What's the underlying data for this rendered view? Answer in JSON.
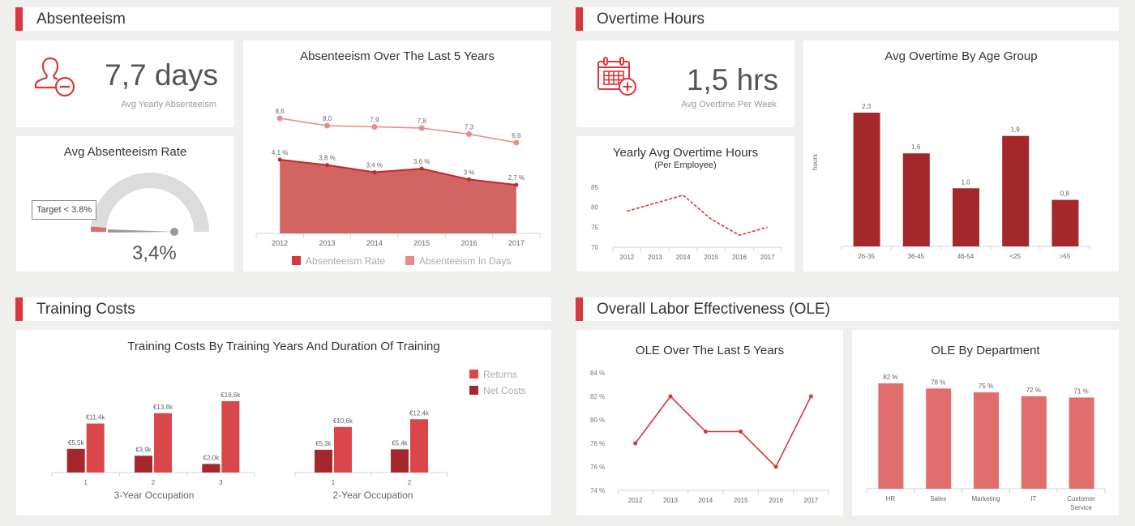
{
  "colors": {
    "accent": "#d6383d",
    "dark_red": "#a4282b",
    "area_red": "#d26462",
    "light_red": "#ea8a8a",
    "bar_red": "#d9474a",
    "ole_bar": "#df6e6d",
    "gauge_track": "#dcdcdc",
    "axis": "#c8d4e6"
  },
  "sections": {
    "absenteeism": {
      "title": "Absenteeism"
    },
    "overtime": {
      "title": "Overtime Hours"
    },
    "training": {
      "title": "Training Costs"
    },
    "ole": {
      "title": "Overall Labor Effectiveness (OLE)"
    }
  },
  "kpis": {
    "absenteeism": {
      "icon": "user-minus-icon",
      "value": "7,7 days",
      "label": "Avg Yearly Absenteeism"
    },
    "overtime": {
      "icon": "calendar-plus-icon",
      "value": "1,5 hrs",
      "label": "Avg Overtime Per Week"
    }
  },
  "gauge": {
    "title": "Avg Absenteeism Rate",
    "target_label": "Target < 3.8%",
    "value_label": "3,4%",
    "value": 3.4,
    "target": 3.8
  },
  "chart_data": [
    {
      "id": "absenteeism_5y",
      "type": "area",
      "title": "Absenteeism Over The Last 5 Years",
      "categories": [
        "2012",
        "2013",
        "2014",
        "2015",
        "2016",
        "2017"
      ],
      "series": [
        {
          "name": "Absenteeism Rate",
          "values": [
            4.1,
            3.8,
            3.4,
            3.6,
            3.0,
            2.7
          ],
          "labels": [
            "4,1 %",
            "3,8 %",
            "3,4 %",
            "3,6 %",
            "3 %",
            "2,7 %"
          ],
          "kind": "area"
        },
        {
          "name": "Absenteeism In Days",
          "values": [
            8.6,
            8.0,
            7.9,
            7.8,
            7.3,
            6.6
          ],
          "labels": [
            "8,6",
            "8,0",
            "7,9",
            "7,8",
            "7,3",
            "6,6"
          ],
          "kind": "line"
        }
      ],
      "legend": "bottom"
    },
    {
      "id": "yearly_overtime",
      "type": "line",
      "title": "Yearly Avg Overtime Hours",
      "subtitle": "(Per Employee)",
      "categories": [
        "2012",
        "2013",
        "2014",
        "2015",
        "2016",
        "2017"
      ],
      "values": [
        79,
        81,
        83,
        77,
        73,
        75
      ],
      "yticks": [
        "85",
        "80",
        "75",
        "70"
      ],
      "ylim": [
        70,
        85
      ],
      "style": "dashed"
    },
    {
      "id": "overtime_age",
      "type": "bar",
      "title": "Avg Overtime By Age Group",
      "ylabel": "hours",
      "categories": [
        "26-35",
        "36-45",
        "46-54",
        "<25",
        ">55"
      ],
      "values": [
        2.3,
        1.6,
        1.0,
        1.9,
        0.8
      ],
      "labels": [
        "2,3",
        "1,6",
        "1,0",
        "1,9",
        "0,8"
      ],
      "ylim": [
        0,
        2.3
      ]
    },
    {
      "id": "training_costs",
      "type": "bar",
      "title": "Training Costs By Training Years And Duration Of Training",
      "legend_entries": [
        "Returns",
        "Net Costs"
      ],
      "legend": "top-right",
      "groups": [
        {
          "name": "3-Year Occupation",
          "categories": [
            "1",
            "2",
            "3"
          ],
          "series": [
            {
              "name": "Net Costs",
              "values": [
                5.5,
                3.9,
                2.0
              ],
              "labels": [
                "€5,5k",
                "€3,9k",
                "€2,0k"
              ]
            },
            {
              "name": "Returns",
              "values": [
                11.4,
                13.8,
                16.6
              ],
              "labels": [
                "€11,4k",
                "€13,8k",
                "€16,6k"
              ]
            }
          ]
        },
        {
          "name": "2-Year Occupation",
          "categories": [
            "1",
            "2"
          ],
          "series": [
            {
              "name": "Net Costs",
              "values": [
                5.3,
                5.4
              ],
              "labels": [
                "€5,3k",
                "€5,4k"
              ]
            },
            {
              "name": "Returns",
              "values": [
                10.6,
                12.4
              ],
              "labels": [
                "€10,6k",
                "€12,4k"
              ]
            }
          ]
        }
      ]
    },
    {
      "id": "ole_5y",
      "type": "line",
      "title": "OLE Over The Last 5 Years",
      "categories": [
        "2012",
        "2013",
        "2014",
        "2015",
        "2016",
        "2017"
      ],
      "values": [
        78,
        82,
        79,
        79,
        76,
        82
      ],
      "yticks": [
        "84 %",
        "82 %",
        "80 %",
        "78 %",
        "76 %",
        "74 %"
      ],
      "ylim": [
        74,
        84
      ]
    },
    {
      "id": "ole_dept",
      "type": "bar",
      "title": "OLE By Department",
      "categories": [
        "HR",
        "Sales",
        "Marketing",
        "IT",
        "Customer Service"
      ],
      "values": [
        82,
        78,
        75,
        72,
        71
      ],
      "labels": [
        "82 %",
        "78 %",
        "75 %",
        "72 %",
        "71 %"
      ]
    }
  ]
}
